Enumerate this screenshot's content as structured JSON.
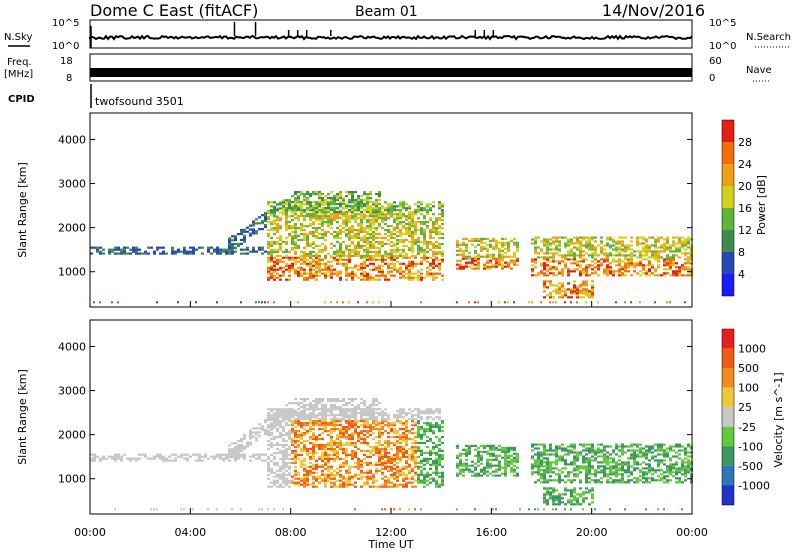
{
  "header": {
    "station": "Dome C East (fitACF)",
    "beam": "Beam 01",
    "date": "14/Nov/2016"
  },
  "chart_data": [
    {
      "type": "line",
      "panel": "nsky-nsearch",
      "left_label": "N.Sky",
      "right_label": "N.Search",
      "y_ticks_left": [
        "10^5",
        "10^0"
      ],
      "y_ticks_right": [
        "10^5",
        "10^0"
      ],
      "scale": "log"
    },
    {
      "type": "line",
      "panel": "freq-nave",
      "left_label": "Freq.",
      "left_unit": "[MHz]",
      "right_label": "Nave",
      "y_ticks_left": [
        "18",
        "8"
      ],
      "y_ticks_right": [
        "60",
        "0"
      ]
    },
    {
      "type": "table",
      "panel": "cpid",
      "label": "CPID",
      "program": "twofsound 3501"
    },
    {
      "type": "heatmap",
      "panel": "power",
      "ylabel": "Slant Range [km]",
      "ylim": [
        200,
        4600
      ],
      "y_ticks": [
        1000,
        2000,
        3000,
        4000
      ],
      "xlim": [
        0,
        24
      ],
      "colorbar_label": "Power [dB]",
      "colorbar_ticks": [
        "4",
        "8",
        "12",
        "16",
        "20",
        "24",
        "28"
      ],
      "colors": [
        "#1a1aff",
        "#2846b4",
        "#3c8c50",
        "#5fb43c",
        "#d2d21e",
        "#f0a014",
        "#f06e0a",
        "#e61e14"
      ]
    },
    {
      "type": "heatmap",
      "panel": "velocity",
      "ylabel": "Slant Range [km]",
      "ylim": [
        200,
        4600
      ],
      "y_ticks": [
        1000,
        2000,
        3000,
        4000
      ],
      "xlim": [
        0,
        24
      ],
      "x_ticks": [
        "00:00",
        "04:00",
        "08:00",
        "12:00",
        "16:00",
        "20:00",
        "00:00"
      ],
      "xlabel": "Time UT",
      "colorbar_label": "Velocity [m s^-1]",
      "colorbar_ticks": [
        "1000",
        "500",
        "100",
        "25",
        "-25",
        "-100",
        "-500",
        "-1000"
      ],
      "colors": [
        "#1e32c8",
        "#2d78b4",
        "#3c9664",
        "#64c83c",
        "#c8c8c8",
        "#f0c83c",
        "#f08c1e",
        "#f05a14",
        "#e61e1e"
      ]
    }
  ]
}
